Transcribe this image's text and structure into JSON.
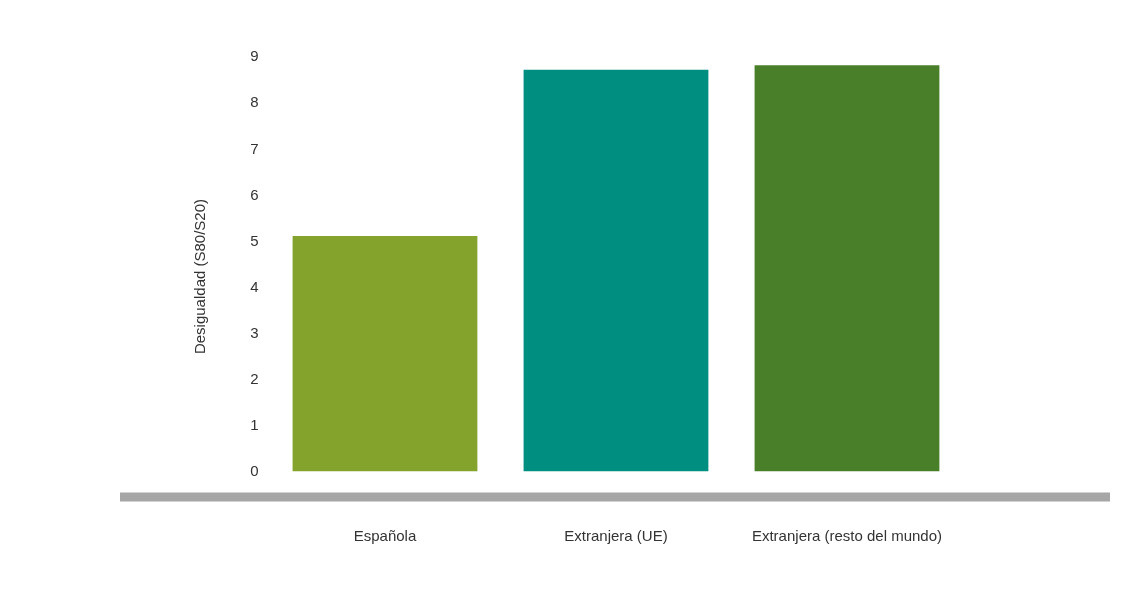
{
  "chart_data": {
    "type": "bar",
    "ylabel": "Desigualdad (S80/S20)",
    "categories": [
      "Española",
      "Extranjera (UE)",
      "Extranjera (resto del mundo)"
    ],
    "values": [
      5.1,
      8.7,
      8.8
    ],
    "colors": [
      "#84a32d",
      "#008e80",
      "#4a7f2a"
    ],
    "ylim": [
      -0.56,
      9
    ],
    "yticks": [
      0,
      1,
      2,
      3,
      4,
      5,
      6,
      7,
      8,
      9
    ]
  }
}
